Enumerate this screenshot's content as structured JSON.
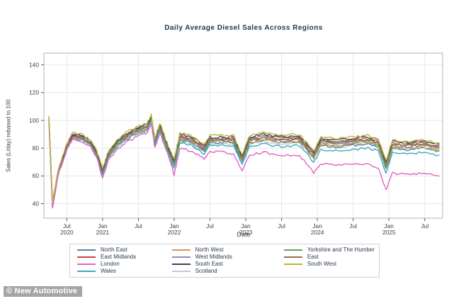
{
  "title": "Daily Average Diesel Sales Across Regions",
  "watermark": "© New Automotive",
  "legend": {
    "items": [
      "North East",
      "East Midlands",
      "London",
      "Wales",
      "North West",
      "West Midlands",
      "South East",
      "Scotland",
      "Yorkshire and The Humber",
      "East",
      "South West"
    ]
  },
  "chart_data": {
    "type": "line",
    "title": "Daily Average Diesel Sales Across Regions",
    "xlabel": "Date",
    "ylabel": "Sales (L/day) rebased to 100",
    "ylim": [
      30,
      148
    ],
    "y_ticks": [
      40,
      60,
      80,
      100,
      120,
      140
    ],
    "x_range": [
      2020.18,
      2025.75
    ],
    "grid": true,
    "legend_position": "bottom",
    "x_ticks": [
      {
        "t": 2020.5,
        "line1": "Jul",
        "line2": "2020"
      },
      {
        "t": 2021.0,
        "line1": "Jan",
        "line2": "2021"
      },
      {
        "t": 2021.5,
        "line1": "Jul",
        "line2": ""
      },
      {
        "t": 2022.0,
        "line1": "Jan",
        "line2": "2022"
      },
      {
        "t": 2022.5,
        "line1": "Jul",
        "line2": ""
      },
      {
        "t": 2023.0,
        "line1": "Jan",
        "line2": "2023"
      },
      {
        "t": 2023.5,
        "line1": "Jul",
        "line2": ""
      },
      {
        "t": 2024.0,
        "line1": "Jan",
        "line2": "2024"
      },
      {
        "t": 2024.5,
        "line1": "Jul",
        "line2": ""
      },
      {
        "t": 2025.0,
        "line1": "Jan",
        "line2": "2025"
      },
      {
        "t": 2025.5,
        "line1": "Jul",
        "line2": ""
      }
    ],
    "x": [
      2020.25,
      2020.3,
      2020.38,
      2020.5,
      2020.58,
      2020.7,
      2020.83,
      2020.92,
      2021.0,
      2021.08,
      2021.2,
      2021.35,
      2021.5,
      2021.62,
      2021.68,
      2021.73,
      2021.8,
      2021.92,
      2022.0,
      2022.08,
      2022.25,
      2022.42,
      2022.5,
      2022.67,
      2022.83,
      2022.95,
      2023.05,
      2023.25,
      2023.5,
      2023.75,
      2023.95,
      2024.05,
      2024.25,
      2024.5,
      2024.7,
      2024.85,
      2024.96,
      2025.05,
      2025.25,
      2025.45,
      2025.7
    ],
    "draw_order": [
      "Scotland",
      "North East",
      "North West",
      "West Midlands",
      "East Midlands",
      "Yorkshire and The Humber",
      "East",
      "South East",
      "Wales",
      "London",
      "South West"
    ],
    "series": [
      {
        "name": "North East",
        "color": "#5b7fa6",
        "values": [
          100,
          38,
          62,
          80,
          88,
          87,
          83,
          75,
          61,
          74,
          82,
          88,
          92,
          94,
          101,
          83,
          94,
          77,
          67,
          86,
          84,
          78,
          84,
          84,
          84,
          70,
          84,
          86,
          84,
          85,
          73,
          82,
          81,
          82,
          83,
          81,
          65,
          80,
          79,
          80,
          78
        ]
      },
      {
        "name": "East Midlands",
        "color": "#c0444a",
        "values": [
          101,
          39,
          62,
          80,
          89,
          88,
          84,
          76,
          62,
          75,
          83,
          89,
          93,
          95,
          102,
          84,
          95,
          78,
          69,
          88,
          86,
          80,
          86,
          86,
          86,
          72,
          86,
          88,
          86,
          87,
          75,
          85,
          84,
          85,
          86,
          84,
          68,
          83,
          82,
          83,
          81
        ]
      },
      {
        "name": "London",
        "color": "#e263c5",
        "values": [
          100,
          37,
          61,
          79,
          87,
          85,
          81,
          73,
          58,
          71,
          79,
          85,
          89,
          91,
          98,
          80,
          91,
          74,
          61,
          80,
          78,
          72,
          78,
          77,
          76,
          63,
          75,
          77,
          75,
          75,
          62,
          69,
          68,
          68,
          69,
          66,
          50,
          62,
          61,
          62,
          60
        ]
      },
      {
        "name": "Wales",
        "color": "#3aacba",
        "values": [
          99,
          37,
          61,
          79,
          87,
          86,
          82,
          74,
          60,
          73,
          81,
          87,
          91,
          93,
          100,
          82,
          93,
          76,
          65,
          84,
          82,
          76,
          82,
          82,
          82,
          68,
          81,
          83,
          81,
          82,
          70,
          79,
          78,
          79,
          80,
          78,
          62,
          77,
          76,
          77,
          75
        ]
      },
      {
        "name": "North West",
        "color": "#d9984f",
        "values": [
          100,
          38,
          62,
          80,
          88,
          87,
          83,
          75,
          61,
          74,
          82,
          88,
          92,
          94,
          101,
          83,
          94,
          77,
          68,
          87,
          85,
          79,
          85,
          85,
          85,
          71,
          84,
          86,
          84,
          85,
          73,
          83,
          82,
          83,
          84,
          82,
          66,
          81,
          80,
          81,
          79
        ]
      },
      {
        "name": "West Midlands",
        "color": "#9489c4",
        "values": [
          102,
          40,
          63,
          81,
          90,
          89,
          85,
          77,
          63,
          76,
          84,
          90,
          94,
          96,
          103,
          85,
          96,
          79,
          69,
          88,
          86,
          80,
          86,
          86,
          86,
          72,
          86,
          88,
          86,
          87,
          75,
          85,
          84,
          85,
          86,
          84,
          68,
          83,
          82,
          83,
          81
        ]
      },
      {
        "name": "South East",
        "color": "#3f4254",
        "values": [
          102,
          40,
          64,
          82,
          90,
          89,
          85,
          77,
          64,
          77,
          85,
          91,
          95,
          97,
          103,
          86,
          97,
          80,
          71,
          90,
          88,
          82,
          88,
          88,
          88,
          74,
          88,
          90,
          88,
          89,
          77,
          87,
          86,
          87,
          88,
          86,
          70,
          85,
          84,
          85,
          83
        ]
      },
      {
        "name": "Scotland",
        "color": "#c6c8d6",
        "values": [
          100,
          37,
          61,
          79,
          87,
          86,
          82,
          74,
          60,
          73,
          81,
          87,
          91,
          93,
          100,
          82,
          93,
          76,
          66,
          85,
          83,
          77,
          83,
          83,
          83,
          69,
          83,
          85,
          83,
          84,
          72,
          82,
          81,
          82,
          83,
          81,
          65,
          80,
          79,
          80,
          78
        ]
      },
      {
        "name": "Yorkshire and The Humber",
        "color": "#63a15f",
        "values": [
          101,
          39,
          63,
          81,
          89,
          88,
          84,
          76,
          62,
          75,
          83,
          89,
          93,
          95,
          102,
          84,
          95,
          78,
          68,
          87,
          85,
          79,
          85,
          85,
          85,
          71,
          85,
          87,
          85,
          86,
          74,
          84,
          83,
          84,
          85,
          83,
          67,
          82,
          81,
          82,
          80
        ]
      },
      {
        "name": "East",
        "color": "#9b6a55",
        "values": [
          101,
          39,
          63,
          81,
          89,
          88,
          84,
          76,
          63,
          76,
          84,
          90,
          94,
          96,
          102,
          85,
          96,
          79,
          70,
          89,
          87,
          81,
          87,
          87,
          87,
          73,
          87,
          89,
          87,
          88,
          76,
          86,
          85,
          86,
          87,
          85,
          69,
          84,
          83,
          84,
          82
        ]
      },
      {
        "name": "South West",
        "color": "#bdb53b",
        "values": [
          103,
          41,
          65,
          83,
          91,
          90,
          86,
          78,
          65,
          78,
          86,
          92,
          96,
          98,
          104,
          87,
          98,
          81,
          72,
          91,
          89,
          83,
          89,
          89,
          89,
          75,
          89,
          91,
          89,
          90,
          78,
          88,
          87,
          88,
          89,
          87,
          71,
          86,
          85,
          86,
          84
        ]
      }
    ]
  }
}
